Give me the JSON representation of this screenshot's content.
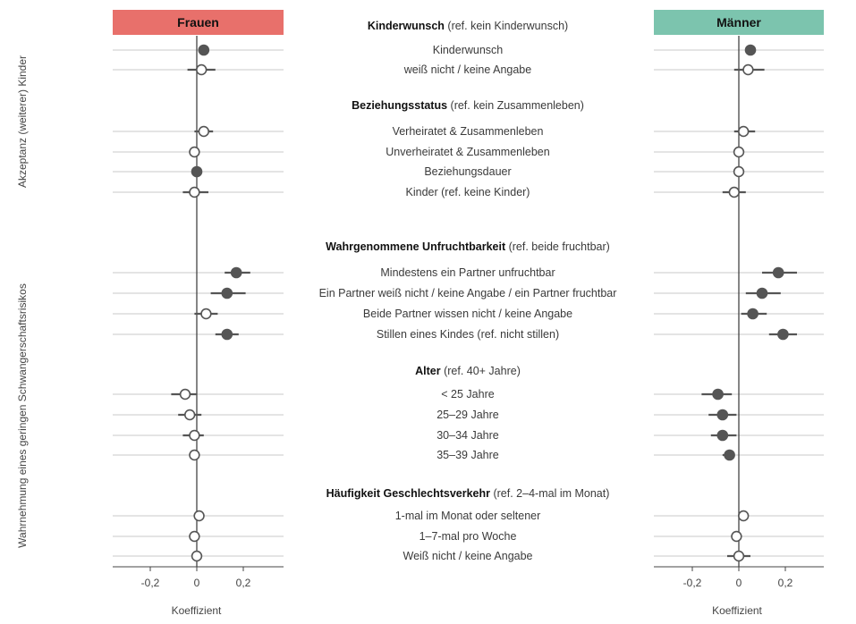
{
  "chart_data": {
    "type": "scatter",
    "subtype": "coefficient-plot",
    "x_label": "Koeffizient",
    "xlim": [
      -0.37,
      0.37
    ],
    "x_ticks": [
      -0.2,
      0,
      0.2
    ],
    "x_tick_labels": [
      "-0,2",
      "0",
      "0,2"
    ],
    "grid": true,
    "left_side_labels": [
      "Akzeptanz (weiterer) Kinder",
      "Wahrnehmung eines geringen Schwangerschaftsrisikos"
    ],
    "panels": [
      {
        "name": "Frauen",
        "color": "#E8706B"
      },
      {
        "name": "Männer",
        "color": "#7CC4AE"
      }
    ],
    "groups": [
      {
        "title": "Kinderwunsch",
        "ref": "(ref. kein Kinderwunsch)",
        "side": 0,
        "rows": [
          {
            "label": "Kinderwunsch",
            "frauen": {
              "est": 0.03,
              "lo": 0.02,
              "hi": 0.04,
              "sig": true
            },
            "maenner": {
              "est": 0.05,
              "lo": 0.04,
              "hi": 0.06,
              "sig": true
            }
          },
          {
            "label": "weiß nicht / keine Angabe",
            "frauen": {
              "est": 0.02,
              "lo": -0.04,
              "hi": 0.08,
              "sig": false
            },
            "maenner": {
              "est": 0.04,
              "lo": -0.02,
              "hi": 0.11,
              "sig": false
            }
          }
        ]
      },
      {
        "title": "Beziehungsstatus",
        "ref": "(ref. kein Zusammenleben)",
        "side": 0,
        "rows": [
          {
            "label": "Verheiratet & Zusammenleben",
            "frauen": {
              "est": 0.03,
              "lo": -0.01,
              "hi": 0.07,
              "sig": false
            },
            "maenner": {
              "est": 0.02,
              "lo": -0.02,
              "hi": 0.07,
              "sig": false
            }
          },
          {
            "label": "Unverheiratet & Zusammenleben",
            "frauen": {
              "est": -0.01,
              "lo": -0.02,
              "hi": 0.0,
              "sig": false
            },
            "maenner": {
              "est": 0.0,
              "lo": -0.01,
              "hi": 0.01,
              "sig": false
            }
          },
          {
            "label": "Beziehungsdauer",
            "frauen": {
              "est": 0.0,
              "lo": -0.005,
              "hi": 0.005,
              "sig": true
            },
            "maenner": {
              "est": 0.0,
              "lo": -0.005,
              "hi": 0.005,
              "sig": false
            }
          },
          {
            "label": "Kinder (ref. keine Kinder)",
            "frauen": {
              "est": -0.01,
              "lo": -0.06,
              "hi": 0.05,
              "sig": false
            },
            "maenner": {
              "est": -0.02,
              "lo": -0.07,
              "hi": 0.03,
              "sig": false
            }
          }
        ]
      },
      {
        "title": "Wahrgenommene Unfruchtbarkeit",
        "ref": "(ref. beide fruchtbar)",
        "side": 1,
        "rows": [
          {
            "label": "Mindestens ein Partner unfruchtbar",
            "frauen": {
              "est": 0.17,
              "lo": 0.12,
              "hi": 0.23,
              "sig": true
            },
            "maenner": {
              "est": 0.17,
              "lo": 0.1,
              "hi": 0.25,
              "sig": true
            }
          },
          {
            "label": "Ein Partner weiß nicht / keine Angabe / ein Partner fruchtbar",
            "frauen": {
              "est": 0.13,
              "lo": 0.06,
              "hi": 0.21,
              "sig": true
            },
            "maenner": {
              "est": 0.1,
              "lo": 0.03,
              "hi": 0.18,
              "sig": true
            }
          },
          {
            "label": "Beide Partner wissen nicht / keine Angabe",
            "frauen": {
              "est": 0.04,
              "lo": -0.01,
              "hi": 0.09,
              "sig": false
            },
            "maenner": {
              "est": 0.06,
              "lo": 0.01,
              "hi": 0.12,
              "sig": true
            }
          },
          {
            "label": "Stillen eines Kindes (ref. nicht stillen)",
            "frauen": {
              "est": 0.13,
              "lo": 0.08,
              "hi": 0.18,
              "sig": true
            },
            "maenner": {
              "est": 0.19,
              "lo": 0.13,
              "hi": 0.25,
              "sig": true
            }
          }
        ]
      },
      {
        "title": "Alter",
        "ref": "(ref. 40+ Jahre)",
        "side": 1,
        "rows": [
          {
            "label": "< 25 Jahre",
            "frauen": {
              "est": -0.05,
              "lo": -0.11,
              "hi": 0.0,
              "sig": false
            },
            "maenner": {
              "est": -0.09,
              "lo": -0.16,
              "hi": -0.03,
              "sig": true
            }
          },
          {
            "label": "25–29 Jahre",
            "frauen": {
              "est": -0.03,
              "lo": -0.08,
              "hi": 0.02,
              "sig": false
            },
            "maenner": {
              "est": -0.07,
              "lo": -0.13,
              "hi": -0.01,
              "sig": true
            }
          },
          {
            "label": "30–34 Jahre",
            "frauen": {
              "est": -0.01,
              "lo": -0.06,
              "hi": 0.03,
              "sig": false
            },
            "maenner": {
              "est": -0.07,
              "lo": -0.12,
              "hi": -0.01,
              "sig": true
            }
          },
          {
            "label": "35–39 Jahre",
            "frauen": {
              "est": -0.01,
              "lo": -0.02,
              "hi": 0.0,
              "sig": false
            },
            "maenner": {
              "est": -0.04,
              "lo": -0.07,
              "hi": -0.02,
              "sig": true
            }
          }
        ]
      },
      {
        "title": "Häufigkeit Geschlechtsverkehr",
        "ref": "(ref. 2–4-mal im Monat)",
        "side": 1,
        "rows": [
          {
            "label": "1-mal im Monat oder seltener",
            "frauen": {
              "est": 0.01,
              "lo": -0.01,
              "hi": 0.02,
              "sig": false
            },
            "maenner": {
              "est": 0.02,
              "lo": 0.0,
              "hi": 0.03,
              "sig": false
            }
          },
          {
            "label": "1–7-mal pro Woche",
            "frauen": {
              "est": -0.01,
              "lo": -0.02,
              "hi": 0.0,
              "sig": false
            },
            "maenner": {
              "est": -0.01,
              "lo": -0.02,
              "hi": 0.0,
              "sig": false
            }
          },
          {
            "label": "Weiß nicht / keine Angabe",
            "frauen": {
              "est": 0.0,
              "lo": -0.02,
              "hi": 0.02,
              "sig": false
            },
            "maenner": {
              "est": 0.0,
              "lo": -0.05,
              "hi": 0.05,
              "sig": false
            }
          }
        ]
      }
    ]
  }
}
